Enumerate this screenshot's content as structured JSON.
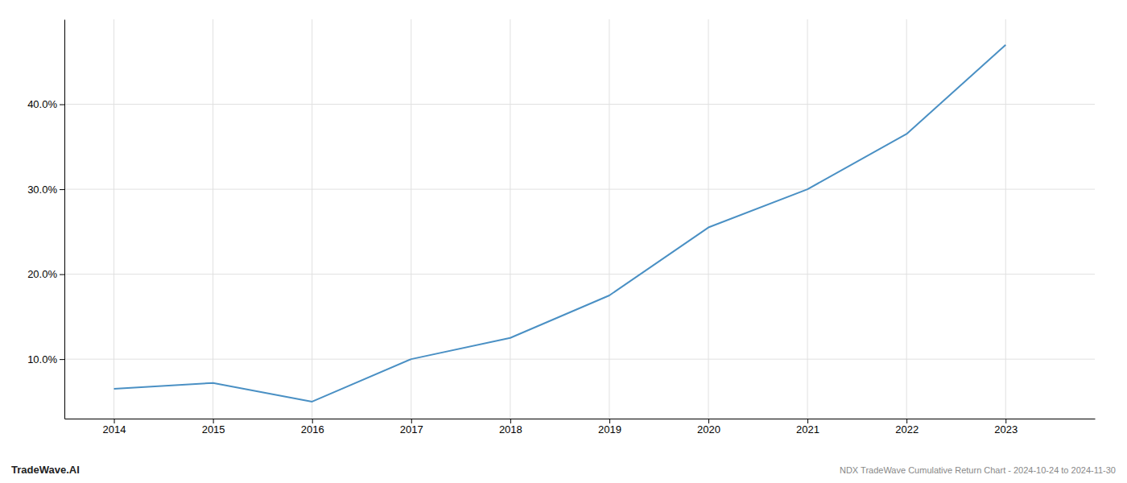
{
  "chart_data": {
    "type": "line",
    "title": "NDX TradeWave Cumulative Return Chart - 2024-10-24 to 2024-11-30",
    "annotations": [
      "TradeWave.AI"
    ],
    "x": [
      2014,
      2015,
      2016,
      2017,
      2018,
      2019,
      2020,
      2021,
      2022,
      2023
    ],
    "values": [
      6.5,
      7.2,
      5.0,
      10.0,
      12.5,
      17.5,
      25.5,
      30.0,
      36.5,
      47.0
    ],
    "color": "#4a90c4",
    "xlim": [
      2013.5,
      2023.9
    ],
    "ylim": [
      3.0,
      50.0
    ],
    "xticks": [
      2014,
      2015,
      2016,
      2017,
      2018,
      2019,
      2020,
      2021,
      2022,
      2023
    ],
    "yticks": [
      {
        "value": 10.0,
        "label": "10.0%"
      },
      {
        "value": 20.0,
        "label": "20.0%"
      },
      {
        "value": 30.0,
        "label": "30.0%"
      },
      {
        "value": 40.0,
        "label": "40.0%"
      }
    ],
    "grid": true
  }
}
